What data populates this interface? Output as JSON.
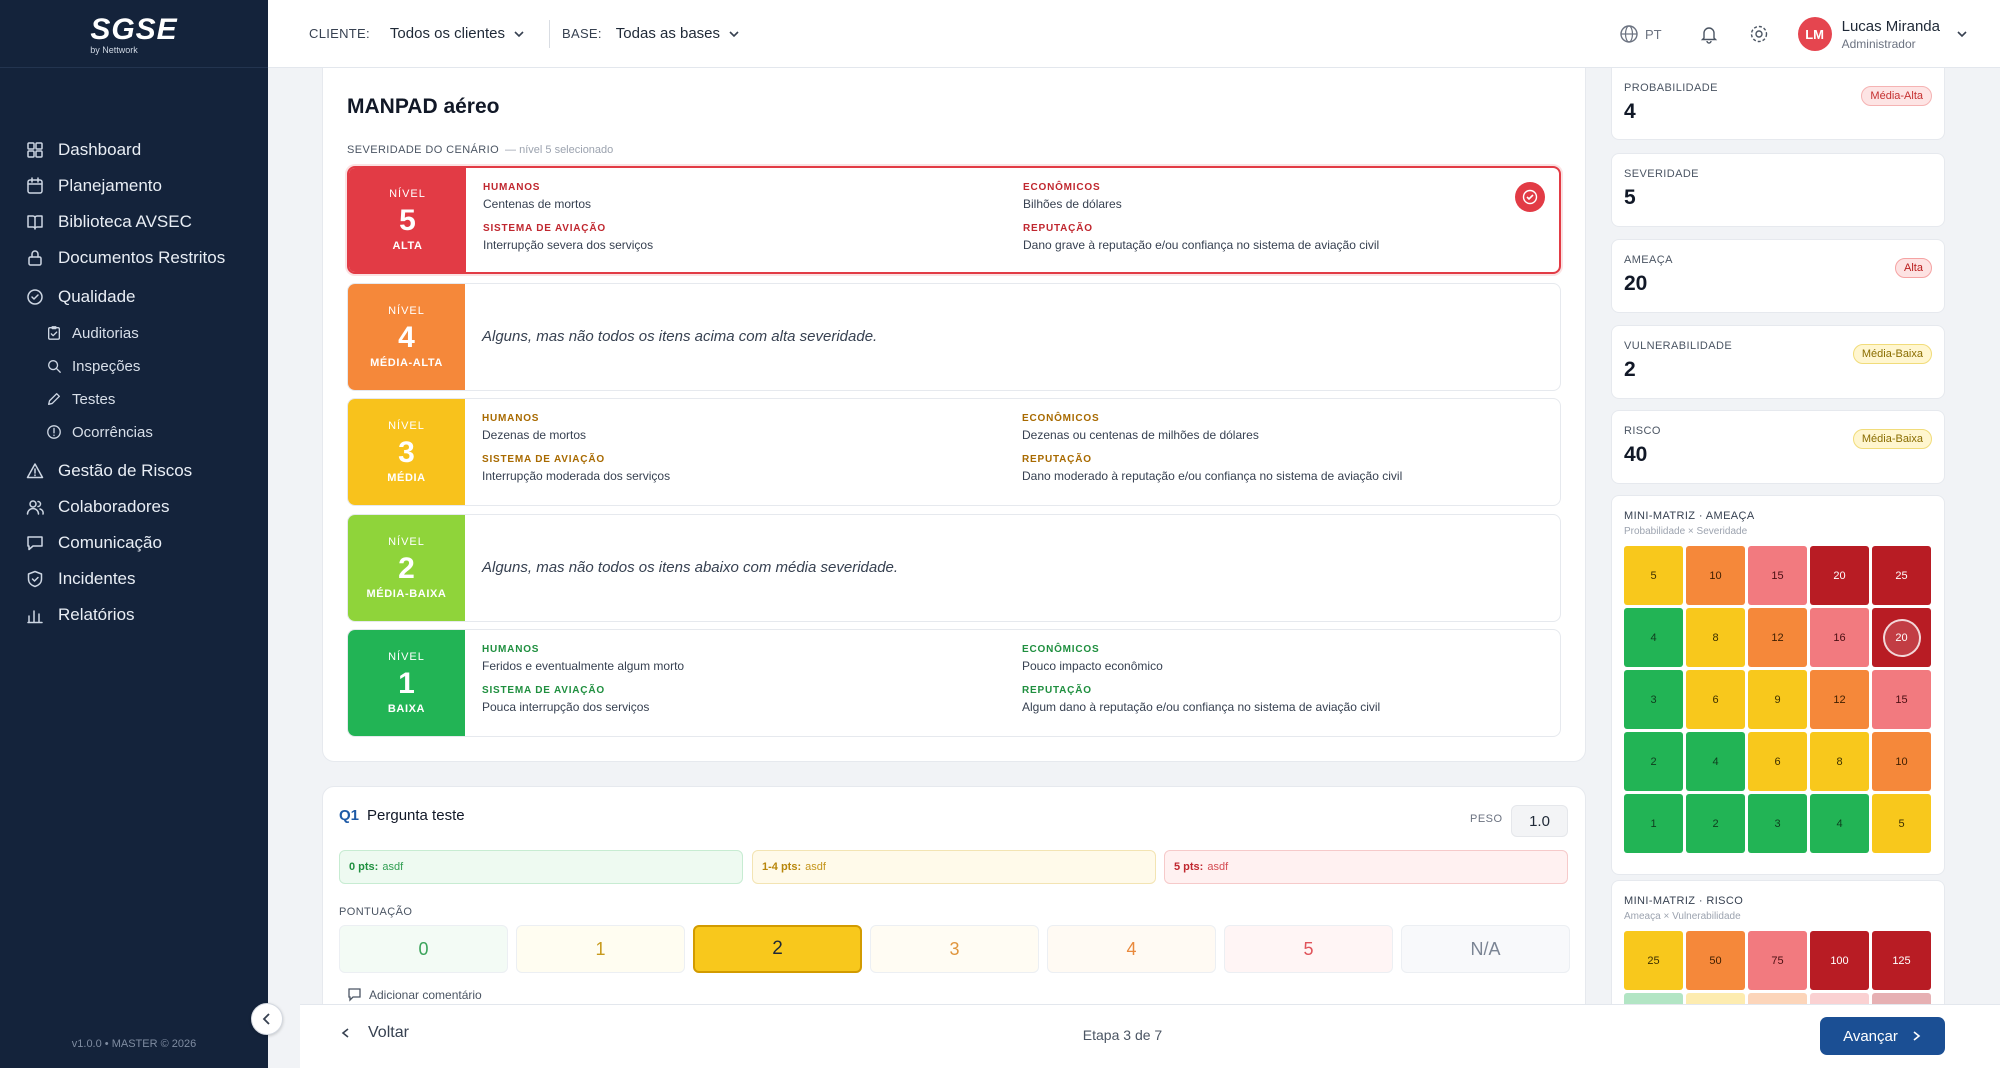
{
  "app": {
    "logo": "SGSE",
    "logo_sub": "by Nettwork",
    "version": "v1.0.0 • MASTER © 2026"
  },
  "sidebar": {
    "items": [
      {
        "label": "Dashboard",
        "icon": "dashboard-icon"
      },
      {
        "label": "Planejamento",
        "icon": "calendar-icon"
      },
      {
        "label": "Biblioteca AVSEC",
        "icon": "book-icon"
      },
      {
        "label": "Documentos Restritos",
        "icon": "lock-icon"
      },
      {
        "label": "Qualidade",
        "icon": "check-circle-icon"
      },
      {
        "label": "Auditorias",
        "icon": "clipboard-icon"
      },
      {
        "label": "Inspeções",
        "icon": "search-icon"
      },
      {
        "label": "Testes",
        "icon": "pencil-icon"
      },
      {
        "label": "Ocorrências",
        "icon": "alert-circle-icon"
      },
      {
        "label": "Gestão de Riscos",
        "icon": "warning-icon"
      },
      {
        "label": "Colaboradores",
        "icon": "users-icon"
      },
      {
        "label": "Comunicação",
        "icon": "message-icon"
      },
      {
        "label": "Incidentes",
        "icon": "shield-icon"
      },
      {
        "label": "Relatórios",
        "icon": "bar-chart-icon"
      }
    ]
  },
  "topbar": {
    "client_label": "CLIENTE:",
    "client_value": "Todos os clientes",
    "base_label": "BASE:",
    "base_value": "Todas as bases",
    "lang": "PT",
    "user_initials": "LM",
    "user_name": "Lucas Miranda",
    "user_role": "Administrador"
  },
  "scenario": {
    "title": "MANPAD aéreo",
    "severity_label": "SEVERIDADE DO CENÁRIO",
    "severity_selected": "— nível 5 selecionado",
    "level_word": "NÍVEL",
    "levels": [
      {
        "n": "5",
        "cat": "ALTA",
        "color": "#e23b45",
        "h1": "HUMANOS",
        "v1": "Centenas de mortos",
        "h2": "ECONÔMICOS",
        "v2": "Bilhões de dólares",
        "h3": "SISTEMA DE AVIAÇÃO",
        "v3": "Interrupção severa dos serviços",
        "h4": "REPUTAÇÃO",
        "v4": "Dano grave à reputação e/ou confiança no sistema de aviação civil"
      },
      {
        "n": "4",
        "cat": "MÉDIA-ALTA",
        "color": "#f5883a",
        "text": "Alguns, mas não todos os itens acima com alta severidade."
      },
      {
        "n": "3",
        "cat": "MÉDIA",
        "color": "#f8c21c",
        "h1": "HUMANOS",
        "v1": "Dezenas de mortos",
        "h2": "ECONÔMICOS",
        "v2": "Dezenas ou centenas de milhões de dólares",
        "h3": "SISTEMA DE AVIAÇÃO",
        "v3": "Interrupção moderada dos serviços",
        "h4": "REPUTAÇÃO",
        "v4": "Dano moderado à reputação e/ou confiança no sistema de aviação civil"
      },
      {
        "n": "2",
        "cat": "MÉDIA-BAIXA",
        "color": "#8fd43a",
        "text": "Alguns, mas não todos os itens abaixo com média severidade."
      },
      {
        "n": "1",
        "cat": "BAIXA",
        "color": "#22b455",
        "h1": "HUMANOS",
        "v1": "Feridos e eventualmente algum morto",
        "h2": "ECONÔMICOS",
        "v2": "Pouco impacto econômico",
        "h3": "SISTEMA DE AVIAÇÃO",
        "v3": "Pouca interrupção dos serviços",
        "h4": "REPUTAÇÃO",
        "v4": "Algum dano à reputação e/ou confiança no sistema de aviação civil"
      }
    ]
  },
  "question": {
    "num": "Q1",
    "title": "Pergunta teste",
    "peso_label": "PESO",
    "peso_value": "1.0",
    "criteria": [
      {
        "pts": "0 pts:",
        "text": "asdf"
      },
      {
        "pts": "1-4 pts:",
        "text": "asdf"
      },
      {
        "pts": "5 pts:",
        "text": "asdf"
      }
    ],
    "pontuacao_label": "PONTUAÇÃO",
    "scores": [
      "0",
      "1",
      "2",
      "3",
      "4",
      "5",
      "N/A"
    ],
    "selected_score": "2",
    "add_comment": "Adicionar comentário"
  },
  "footer": {
    "back": "Voltar",
    "step": "Etapa 3 de 7",
    "next": "Avançar"
  },
  "metrics": [
    {
      "label": "PROBABILIDADE",
      "value": "4",
      "badge": "Média-Alta",
      "badge_bg": "#fde4e4",
      "badge_fg": "#c53030",
      "badge_bd": "#f5b3b3"
    },
    {
      "label": "SEVERIDADE",
      "value": "5",
      "badge": ""
    },
    {
      "label": "AMEAÇA",
      "value": "20",
      "badge": "Alta",
      "badge_bg": "#fde2e2",
      "badge_fg": "#b91c1c",
      "badge_bd": "#f5a3a3"
    },
    {
      "label": "VULNERABILIDADE",
      "value": "2",
      "badge": "Média-Baixa",
      "badge_bg": "#fff6cf",
      "badge_fg": "#8a6d00",
      "badge_bd": "#f1dc7a"
    },
    {
      "label": "RISCO",
      "value": "40",
      "badge": "Média-Baixa",
      "badge_bg": "#fff6cf",
      "badge_fg": "#8a6d00",
      "badge_bd": "#f1dc7a"
    }
  ],
  "mini_threat": {
    "title": "MINI-MATRIZ · AMEAÇA",
    "subtitle": "Probabilidade × Severidade",
    "selected_value": "20",
    "rows": [
      [
        "5",
        "10",
        "15",
        "20",
        "25"
      ],
      [
        "4",
        "8",
        "12",
        "16",
        "20"
      ],
      [
        "3",
        "6",
        "9",
        "12",
        "15"
      ],
      [
        "2",
        "4",
        "6",
        "8",
        "10"
      ],
      [
        "1",
        "2",
        "3",
        "4",
        "5"
      ]
    ]
  },
  "mini_risk": {
    "title": "MINI-MATRIZ · RISCO",
    "subtitle": "Ameaça × Vulnerabilidade",
    "rows": [
      [
        "25",
        "50",
        "75",
        "100",
        "125"
      ]
    ]
  }
}
